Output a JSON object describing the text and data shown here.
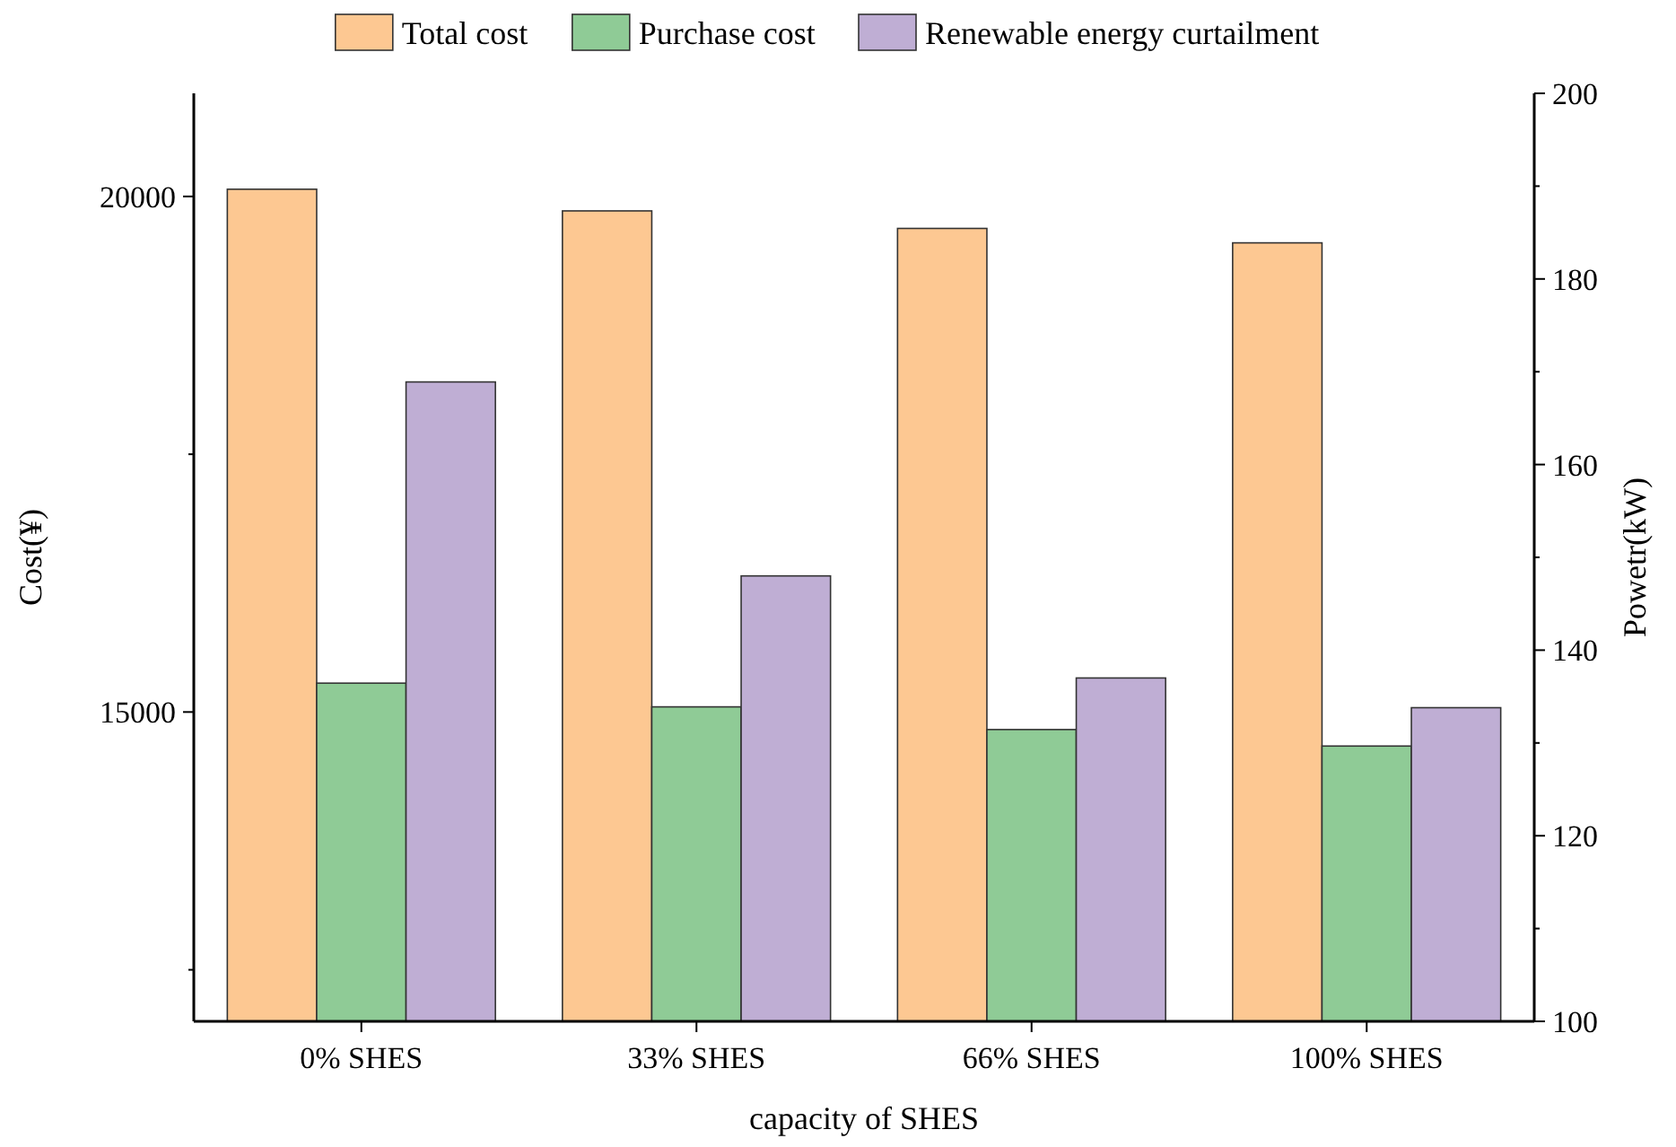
{
  "chart_data": {
    "type": "bar",
    "xlabel": "capacity of SHES",
    "ylabel": "Cost(¥)",
    "y2label": "Powetr(kW)",
    "categories": [
      "0% SHES",
      "33% SHES",
      "66% SHES",
      "100% SHES"
    ],
    "series": [
      {
        "name": "Total cost",
        "color": "#fdc892",
        "values": [
          20070,
          19860,
          19690,
          19550
        ]
      },
      {
        "name": "Purchase cost",
        "color": "#8fcb96",
        "values": [
          15280,
          15050,
          14830,
          14670
        ]
      },
      {
        "name": "Renewable energy curtailment",
        "color": "#bfaed4",
        "axis": "y2",
        "values": [
          168.9,
          148,
          137,
          133.8
        ]
      }
    ],
    "ylim": [
      12000,
      21000
    ],
    "yticks": [
      {
        "value": 12500,
        "label": null
      },
      15000,
      {
        "value": 17500,
        "label": null
      },
      20000
    ],
    "y2lim": [
      100,
      200
    ],
    "y2ticks": [
      100,
      {
        "value": 110,
        "label": null
      },
      120,
      {
        "value": 130,
        "label": null
      },
      140,
      {
        "value": 150,
        "label": null
      },
      160,
      {
        "value": 170,
        "label": null
      },
      180,
      {
        "value": 190,
        "label": null
      },
      200
    ],
    "legend": "top",
    "grid": false
  }
}
